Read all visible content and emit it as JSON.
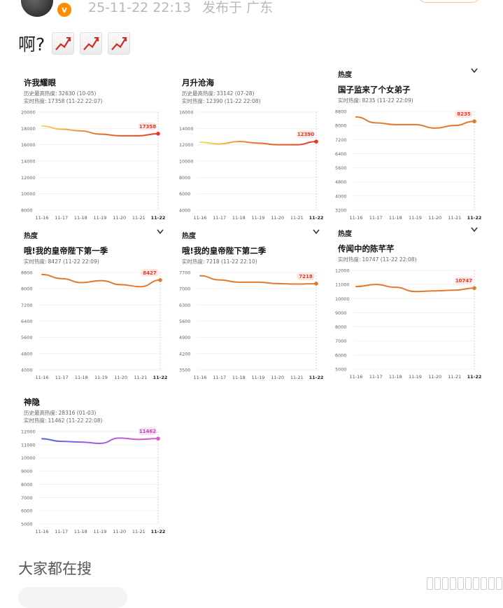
{
  "post": {
    "timestamp": "25-11-22 22:13",
    "location": "发布于 广东",
    "text": "啊?",
    "trend_icons": [
      "chart-increasing-icon",
      "chart-increasing-icon",
      "chart-increasing-icon"
    ]
  },
  "colors": {
    "accent": "#ff8c00",
    "line_orange": "#e5702b",
    "line_red": "#e23b2b"
  },
  "cards": [
    {
      "tag": "",
      "title": "许我耀眼",
      "lines": [
        {
          "label": "历史最高热度:",
          "value": "32630 (10-05)"
        },
        {
          "label": "实时热度:",
          "value": "17358 (11-22 22:07)"
        }
      ],
      "yticks": [
        "20000",
        "18000",
        "16000",
        "14000",
        "12000",
        "10000",
        "8000"
      ],
      "xticks": [
        "11-16",
        "11-17",
        "11-18",
        "11-19",
        "11-20",
        "11-21",
        "11-22"
      ],
      "bubble": "17358"
    },
    {
      "tag": "",
      "title": "月升沧海",
      "lines": [
        {
          "label": "历史最高热度:",
          "value": "33142 (07-28)"
        },
        {
          "label": "实时热度:",
          "value": "12390 (11-22 22:08)"
        }
      ],
      "yticks": [
        "16000",
        "14000",
        "12000",
        "10000",
        "8000",
        "6000",
        "4000"
      ],
      "xticks": [
        "11-16",
        "11-17",
        "11-18",
        "11-19",
        "11-20",
        "11-21",
        "11-22"
      ],
      "bubble": "12390"
    },
    {
      "tag": "热度",
      "title": "国子监来了个女弟子",
      "lines": [
        {
          "label": "实时热度:",
          "value": "8235 (11-22 22:09)"
        }
      ],
      "yticks": [
        "8800",
        "8000",
        "7200",
        "6400",
        "5600",
        "4800",
        "4000",
        "3200"
      ],
      "xticks": [
        "11-16",
        "11-17",
        "11-18",
        "11-19",
        "11-20",
        "11-21",
        "11-22"
      ],
      "bubble": "8235"
    },
    {
      "tag": "热度",
      "title": "哦!我的皇帝陛下第一季",
      "lines": [
        {
          "label": "实时热度:",
          "value": "8427 (11-22 22:09)"
        }
      ],
      "yticks": [
        "8800",
        "8000",
        "7200",
        "6400",
        "5600",
        "4800",
        "4000"
      ],
      "xticks": [
        "11-16",
        "11-17",
        "11-18",
        "11-19",
        "11-20",
        "11-21",
        "11-22"
      ],
      "bubble": "8427"
    },
    {
      "tag": "热度",
      "title": "哦!我的皇帝陛下第二季",
      "lines": [
        {
          "label": "实时热度:",
          "value": "7218 (11-22 22:10)"
        }
      ],
      "yticks": [
        "7700",
        "7000",
        "6300",
        "5600",
        "4900",
        "4200",
        "3500"
      ],
      "xticks": [
        "11-16",
        "11-17",
        "11-18",
        "11-19",
        "11-20",
        "11-21",
        "11-22"
      ],
      "bubble": "7218"
    },
    {
      "tag": "热度",
      "title": "传闻中的陈芊芊",
      "lines": [
        {
          "label": "实时热度:",
          "value": "10747 (11-22 22:08)"
        }
      ],
      "yticks": [
        "12000",
        "11000",
        "10000",
        "9000",
        "8000",
        "7000",
        "6000",
        "5000"
      ],
      "xticks": [
        "11-16",
        "11-17",
        "11-18",
        "11-19",
        "11-20",
        "11-21",
        "11-22"
      ],
      "bubble": "10747"
    },
    {
      "tag": "",
      "title": "神隐",
      "lines": [
        {
          "label": "历史最高热度:",
          "value": "28316 (01-03)"
        },
        {
          "label": "实时热度:",
          "value": "11462 (11-22 22:08)"
        }
      ],
      "yticks": [
        "12000",
        "11000",
        "10000",
        "9000",
        "8000",
        "7000",
        "6000",
        "5000"
      ],
      "xticks": [
        "11-16",
        "11-17",
        "11-18",
        "11-19",
        "11-20",
        "11-21",
        "11-22"
      ],
      "bubble": "11462"
    }
  ],
  "chart_data": [
    {
      "type": "line",
      "title": "许我耀眼",
      "x": [
        "11-16",
        "11-17",
        "11-18",
        "11-19",
        "11-20",
        "11-21",
        "11-22"
      ],
      "series": [
        {
          "values": [
            18300,
            17900,
            17700,
            17300,
            17100,
            17100,
            17358
          ]
        }
      ],
      "ylim": [
        8000,
        20000
      ]
    },
    {
      "type": "line",
      "title": "月升沧海",
      "x": [
        "11-16",
        "11-17",
        "11-18",
        "11-19",
        "11-20",
        "11-21",
        "11-22"
      ],
      "series": [
        {
          "values": [
            12300,
            12100,
            12400,
            12200,
            12000,
            12000,
            12390
          ]
        }
      ],
      "ylim": [
        4000,
        16000
      ]
    },
    {
      "type": "line",
      "title": "国子监来了个女弟子",
      "x": [
        "11-16",
        "11-17",
        "11-18",
        "11-19",
        "11-20",
        "11-21",
        "11-22"
      ],
      "series": [
        {
          "values": [
            8480,
            8150,
            8050,
            8050,
            7850,
            8000,
            8235
          ]
        }
      ],
      "ylim": [
        3200,
        8800
      ]
    },
    {
      "type": "line",
      "title": "哦!我的皇帝陛下第一季",
      "x": [
        "11-16",
        "11-17",
        "11-18",
        "11-19",
        "11-20",
        "11-21",
        "11-22"
      ],
      "series": [
        {
          "values": [
            8700,
            8500,
            8300,
            8400,
            8200,
            8100,
            8427
          ]
        }
      ],
      "ylim": [
        4000,
        8800
      ]
    },
    {
      "type": "line",
      "title": "哦!我的皇帝陛下第二季",
      "x": [
        "11-16",
        "11-17",
        "11-18",
        "11-19",
        "11-20",
        "11-21",
        "11-22"
      ],
      "series": [
        {
          "values": [
            7560,
            7380,
            7280,
            7280,
            7220,
            7200,
            7218
          ]
        }
      ],
      "ylim": [
        3500,
        7700
      ]
    },
    {
      "type": "line",
      "title": "传闻中的陈芊芊",
      "x": [
        "11-16",
        "11-17",
        "11-18",
        "11-19",
        "11-20",
        "11-21",
        "11-22"
      ],
      "series": [
        {
          "values": [
            10850,
            11000,
            10800,
            10500,
            10550,
            10600,
            10747
          ]
        }
      ],
      "ylim": [
        5000,
        12000
      ]
    },
    {
      "type": "line",
      "title": "神隐",
      "x": [
        "11-16",
        "11-17",
        "11-18",
        "11-19",
        "11-20",
        "11-21",
        "11-22"
      ],
      "series": [
        {
          "values": [
            11450,
            11250,
            11200,
            11100,
            11500,
            11400,
            11462
          ]
        }
      ],
      "ylim": [
        5000,
        12000
      ]
    }
  ],
  "footer": {
    "section_title": "大家都在搜"
  }
}
